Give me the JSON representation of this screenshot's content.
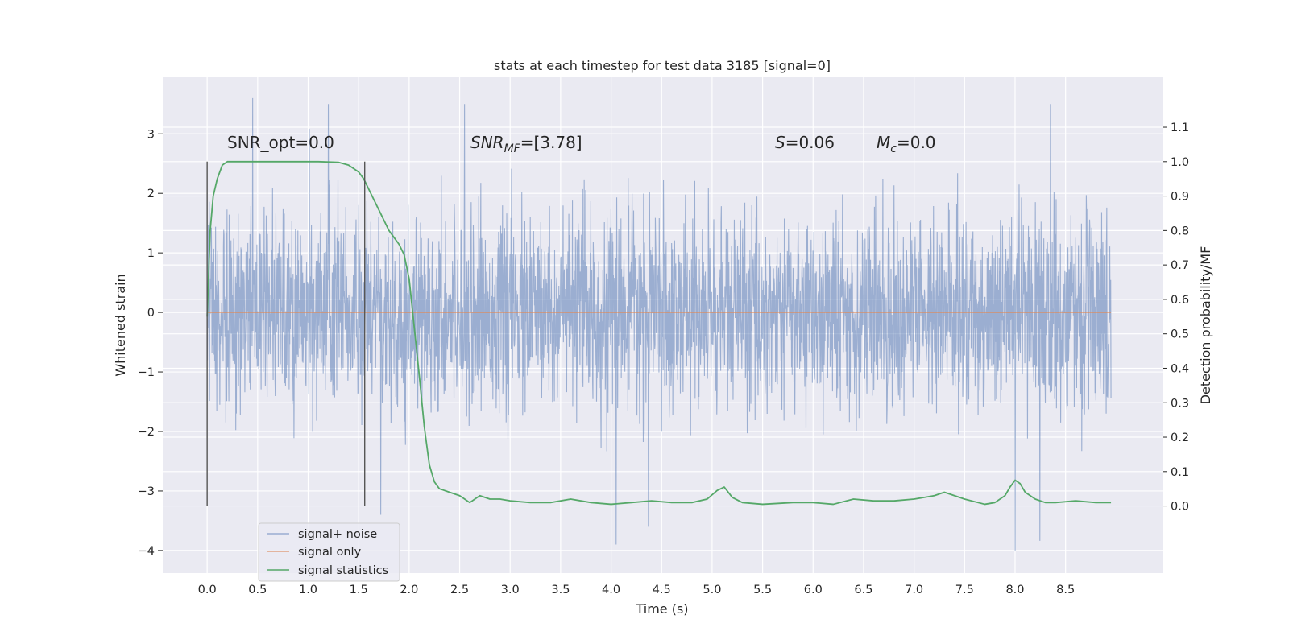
{
  "chart_data": {
    "type": "line",
    "title": "stats at each timestep for test data 3185 [signal=0]",
    "xlabel": "Time (s)",
    "ylabel": "Whitened strain",
    "y2label": "Detection probability/MF",
    "xlim": [
      -0.44,
      9.46
    ],
    "ylim": [
      -4.38,
      3.95
    ],
    "y2lim": [
      -0.195,
      1.245
    ],
    "xticks": [
      "0.0",
      "0.5",
      "1.0",
      "1.5",
      "2.0",
      "2.5",
      "3.0",
      "3.5",
      "4.0",
      "4.5",
      "5.0",
      "5.5",
      "6.0",
      "6.5",
      "7.0",
      "7.5",
      "8.0",
      "8.5"
    ],
    "yticks": [
      "−4",
      "−3",
      "−2",
      "−1",
      "0",
      "1",
      "2",
      "3"
    ],
    "y2ticks": [
      "0.0",
      "0.1",
      "0.2",
      "0.3",
      "0.4",
      "0.5",
      "0.6",
      "0.7",
      "0.8",
      "0.9",
      "1.0",
      "1.1"
    ],
    "grid": true,
    "legend_position": "lower-left",
    "annotations": [
      {
        "id": "snr-opt",
        "base": "SNR_opt=0.0",
        "sub": "",
        "rest": ""
      },
      {
        "id": "snr-mf",
        "base": "SNR",
        "sub": "MF",
        "rest": "=[3.78]"
      },
      {
        "id": "s-stat",
        "base": "S",
        "sub": "",
        "rest": "=0.06"
      },
      {
        "id": "mc-stat",
        "base": "M",
        "sub": "c",
        "rest": "=0.0"
      }
    ],
    "vertical_markers": [
      0.0,
      1.56
    ],
    "series": [
      {
        "name": "signal+ noise",
        "color": "#4c72b0",
        "opacity": 0.5,
        "axis": "left",
        "t_start": 0.0,
        "t_end": 8.95,
        "envelope": {
          "typical_low": -1.6,
          "typical_high": 1.6,
          "peak_low": -4.0,
          "peak_high": 3.6
        },
        "notable_extremes": [
          [
            0.45,
            3.6
          ],
          [
            1.2,
            3.5
          ],
          [
            2.55,
            3.5
          ],
          [
            8.35,
            3.5
          ],
          [
            8.0,
            -4.0
          ],
          [
            4.05,
            -3.9
          ],
          [
            4.37,
            -3.6
          ],
          [
            1.72,
            -3.4
          ]
        ]
      },
      {
        "name": "signal only",
        "color": "#dd8452",
        "opacity": 0.7,
        "axis": "left",
        "x": [
          0.0,
          8.95
        ],
        "y": [
          0.0,
          0.0
        ]
      },
      {
        "name": "signal statistics",
        "color": "#55a868",
        "opacity": 1.0,
        "axis": "right",
        "x": [
          0.0,
          0.03,
          0.06,
          0.1,
          0.15,
          0.2,
          0.3,
          0.5,
          0.8,
          1.1,
          1.3,
          1.4,
          1.5,
          1.55,
          1.6,
          1.65,
          1.7,
          1.75,
          1.8,
          1.85,
          1.9,
          1.95,
          2.0,
          2.05,
          2.1,
          2.15,
          2.2,
          2.25,
          2.3,
          2.35,
          2.4,
          2.5,
          2.55,
          2.6,
          2.7,
          2.8,
          2.9,
          3.0,
          3.2,
          3.4,
          3.6,
          3.8,
          4.0,
          4.2,
          4.4,
          4.6,
          4.8,
          4.95,
          5.05,
          5.12,
          5.2,
          5.3,
          5.5,
          5.8,
          6.0,
          6.2,
          6.4,
          6.6,
          6.8,
          7.0,
          7.2,
          7.3,
          7.4,
          7.5,
          7.7,
          7.8,
          7.9,
          7.95,
          8.0,
          8.05,
          8.1,
          8.2,
          8.3,
          8.4,
          8.6,
          8.8,
          8.95
        ],
        "y": [
          0.55,
          0.8,
          0.9,
          0.95,
          0.99,
          1.0,
          1.0,
          1.0,
          1.0,
          1.0,
          0.998,
          0.99,
          0.97,
          0.95,
          0.92,
          0.89,
          0.86,
          0.83,
          0.8,
          0.78,
          0.76,
          0.73,
          0.66,
          0.52,
          0.38,
          0.23,
          0.12,
          0.07,
          0.05,
          0.045,
          0.04,
          0.03,
          0.02,
          0.01,
          0.03,
          0.02,
          0.02,
          0.015,
          0.01,
          0.01,
          0.02,
          0.01,
          0.005,
          0.01,
          0.015,
          0.01,
          0.01,
          0.02,
          0.045,
          0.055,
          0.025,
          0.01,
          0.005,
          0.01,
          0.01,
          0.005,
          0.02,
          0.015,
          0.015,
          0.02,
          0.03,
          0.04,
          0.03,
          0.02,
          0.005,
          0.01,
          0.03,
          0.055,
          0.075,
          0.065,
          0.04,
          0.02,
          0.01,
          0.01,
          0.015,
          0.01,
          0.01
        ]
      }
    ]
  }
}
